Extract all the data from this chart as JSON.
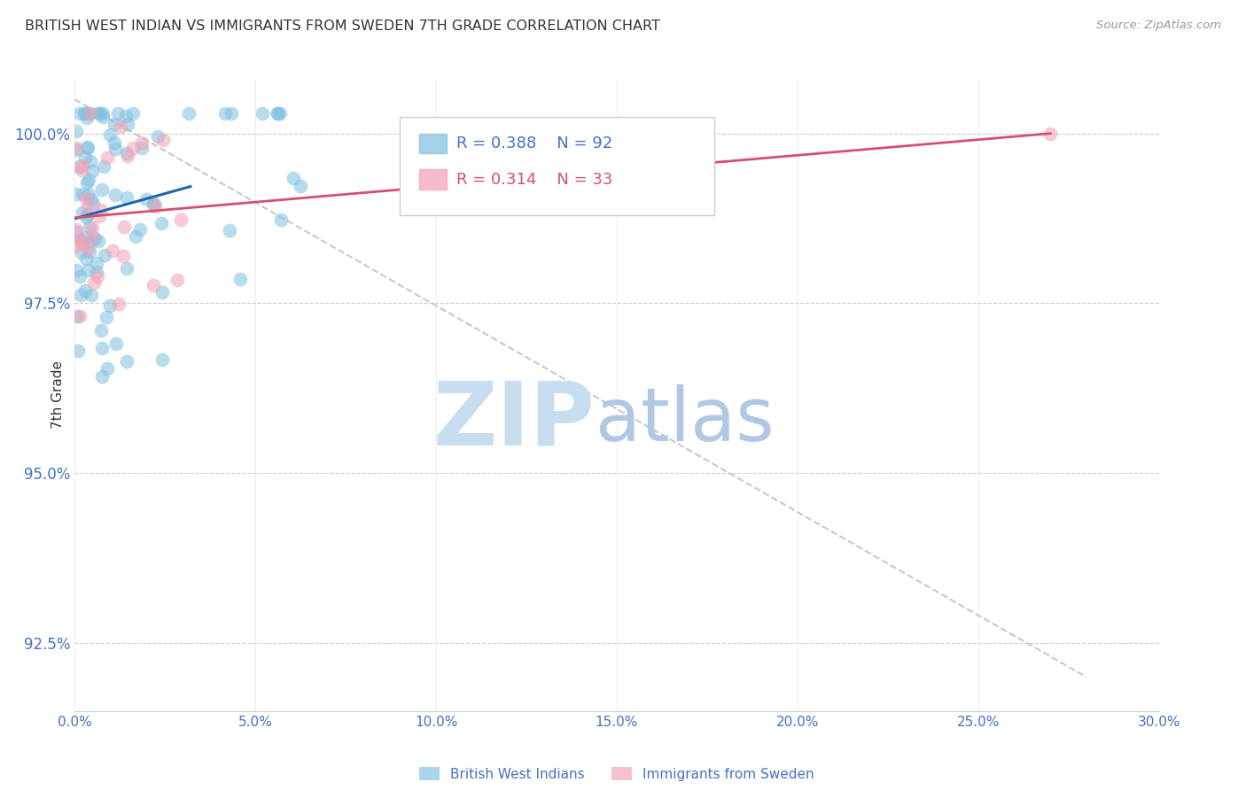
{
  "title": "BRITISH WEST INDIAN VS IMMIGRANTS FROM SWEDEN 7TH GRADE CORRELATION CHART",
  "source": "Source: ZipAtlas.com",
  "ylabel_label": "7th Grade",
  "x_min": 0.0,
  "x_max": 30.0,
  "y_min": 91.5,
  "y_max": 100.8,
  "y_ticks": [
    92.5,
    95.0,
    97.5,
    100.0
  ],
  "y_tick_labels": [
    "92.5%",
    "95.0%",
    "97.5%",
    "100.0%"
  ],
  "blue_label": "British West Indians",
  "pink_label": "Immigrants from Sweden",
  "blue_R": "R = 0.388",
  "blue_N": "N = 92",
  "pink_R": "R = 0.314",
  "pink_N": "N = 33",
  "blue_color": "#7fbfdf",
  "pink_color": "#f4a0b5",
  "blue_line_color": "#2166ac",
  "pink_line_color": "#d45070",
  "axis_color": "#4472c4",
  "watermark_zip_color": "#c8ddf0",
  "watermark_atlas_color": "#b0c8e4"
}
